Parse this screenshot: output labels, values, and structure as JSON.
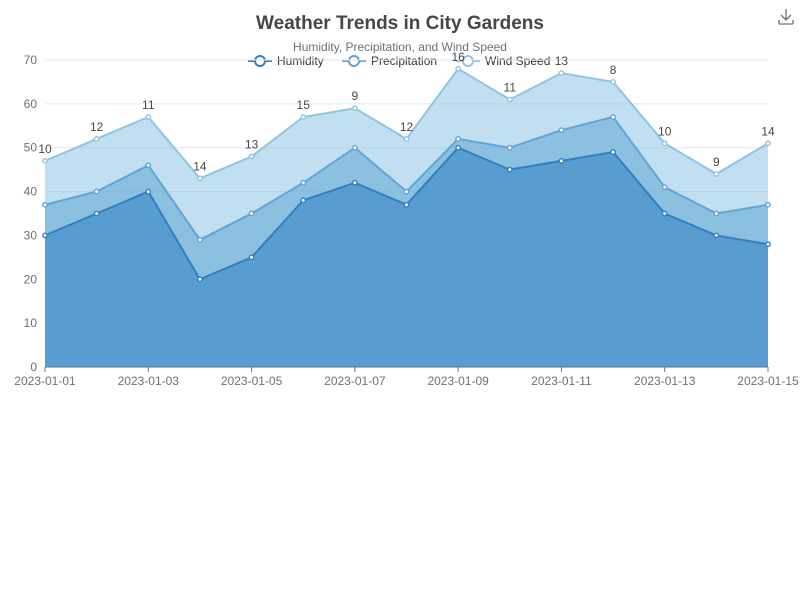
{
  "chart_data": {
    "type": "area",
    "stacked": true,
    "title": "Weather Trends in City Gardens",
    "subtitle": "Humidity, Precipitation, and Wind Speed",
    "x": [
      "2023-01-01",
      "2023-01-02",
      "2023-01-03",
      "2023-01-04",
      "2023-01-05",
      "2023-01-06",
      "2023-01-07",
      "2023-01-08",
      "2023-01-09",
      "2023-01-10",
      "2023-01-11",
      "2023-01-12",
      "2023-01-13",
      "2023-01-14",
      "2023-01-15"
    ],
    "x_tick_labels": [
      "2023-01-01",
      "2023-01-03",
      "2023-01-05",
      "2023-01-07",
      "2023-01-09",
      "2023-01-11",
      "2023-01-13",
      "2023-01-15"
    ],
    "ylim": [
      0,
      70
    ],
    "y_ticks": [
      0,
      10,
      20,
      30,
      40,
      50,
      60,
      70
    ],
    "grid": true,
    "legend_position": "top-center",
    "series": [
      {
        "name": "Humidity",
        "color": "#2f7fc1",
        "values": [
          30,
          35,
          40,
          20,
          25,
          38,
          42,
          37,
          50,
          45,
          47,
          49,
          35,
          30,
          28
        ]
      },
      {
        "name": "Precipitation",
        "color": "#5ea6d6",
        "values": [
          7,
          5,
          6,
          9,
          10,
          4,
          8,
          3,
          2,
          5,
          7,
          8,
          6,
          5,
          9
        ]
      },
      {
        "name": "Wind Speed",
        "color": "#8ec4e3",
        "values": [
          10,
          12,
          11,
          14,
          13,
          15,
          9,
          12,
          16,
          11,
          13,
          8,
          10,
          9,
          14
        ],
        "show_labels": true
      }
    ]
  },
  "toolbar": {
    "download_icon": "download-icon"
  }
}
